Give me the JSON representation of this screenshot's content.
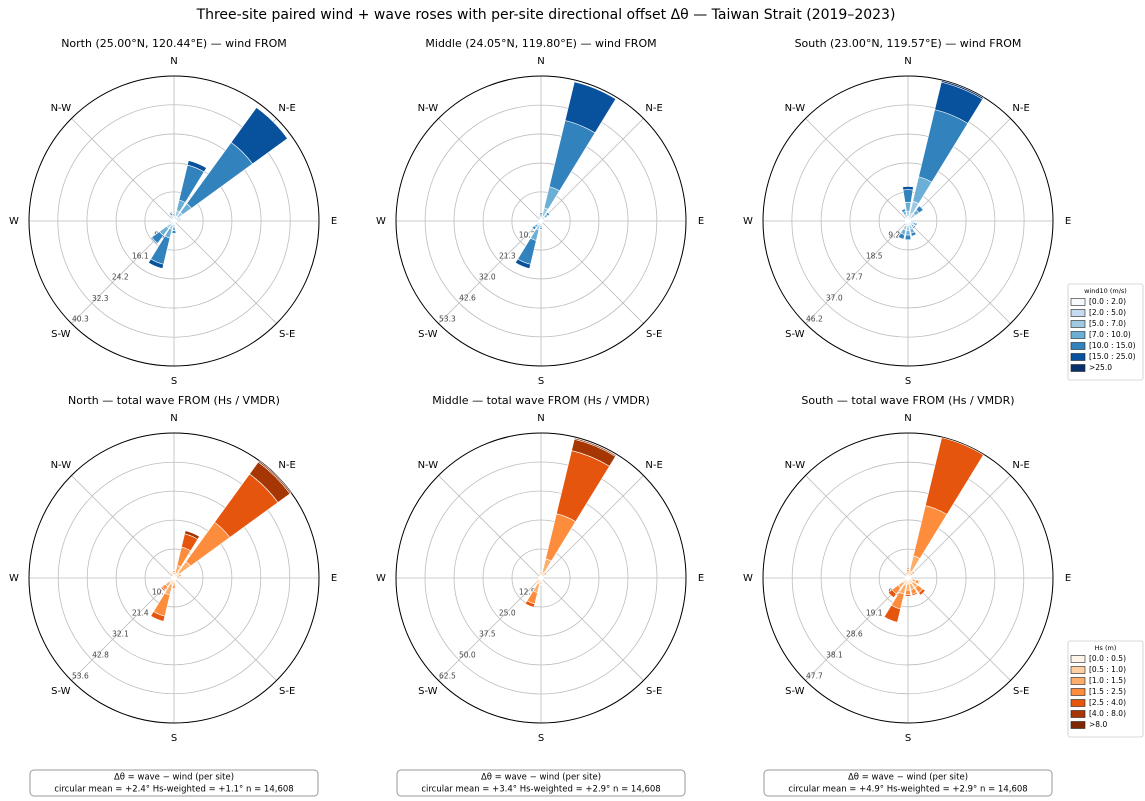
{
  "title": "Three-site paired wind + wave roses with per-site directional offset Δθ — Taiwan Strait (2019–2023)",
  "chart_data": [
    {
      "type": "windrose",
      "title": "North  (25.00°N, 120.44°E) — wind FROM",
      "direction_labels": [
        "N",
        "N-E",
        "E",
        "S-E",
        "S",
        "S-W",
        "W",
        "N-W"
      ],
      "ylim": [
        0,
        40.3
      ],
      "yticks": [
        8.1,
        16.1,
        24.2,
        32.3,
        40.3
      ],
      "series": [
        {
          "name": "[0.0 : 2.0)",
          "color": "#f7fbff",
          "values": [
            0.3,
            0.5,
            0.5,
            0.3,
            0.2,
            0.2,
            0.2,
            0.2,
            0.3,
            0.4,
            0.4,
            0.3,
            0.2,
            0.2,
            0.2,
            0.3
          ]
        },
        {
          "name": "[2.0 : 5.0)",
          "color": "#c6dbef",
          "values": [
            0.5,
            1,
            1,
            0.5,
            0.3,
            0.2,
            0.2,
            0.3,
            0.6,
            0.8,
            0.8,
            0.5,
            0.3,
            0.2,
            0.3,
            0.5
          ]
        },
        {
          "name": "[5.0 : 7.0)",
          "color": "#9ecae1",
          "values": [
            0.5,
            1.5,
            1.5,
            0.6,
            0.2,
            0.1,
            0.1,
            0.2,
            0.8,
            1.2,
            1.3,
            0.4,
            0.2,
            0.1,
            0.2,
            0.5
          ]
        },
        {
          "name": "[7.0 : 10.0)",
          "color": "#6baed6",
          "values": [
            0.4,
            3,
            3,
            0.4,
            0.1,
            0,
            0,
            0.1,
            1,
            2.5,
            2.5,
            0.2,
            0.1,
            0,
            0.1,
            0.4
          ]
        },
        {
          "name": "[10.0 : 15.0)",
          "color": "#3182bd",
          "values": [
            0.2,
            10,
            21,
            0.2,
            0,
            0,
            0,
            0,
            0.8,
            7.5,
            2.7,
            0,
            0,
            0,
            0,
            0.5
          ]
        },
        {
          "name": "[15.0 : 25.0)",
          "color": "#08519c",
          "values": [
            0,
            1.3,
            12,
            0,
            0,
            0,
            0,
            0,
            0.1,
            1.2,
            0.3,
            0,
            0,
            0,
            0,
            0.3
          ]
        },
        {
          "name": ">25.0",
          "color": "#08306b",
          "values": [
            0,
            0.2,
            0,
            0,
            0,
            0,
            0,
            0,
            0,
            0,
            0,
            0,
            0,
            0,
            0,
            0
          ]
        }
      ]
    },
    {
      "type": "windrose",
      "title": "Middle  (24.05°N, 119.80°E) — wind FROM",
      "direction_labels": [
        "N",
        "N-E",
        "E",
        "S-E",
        "S",
        "S-W",
        "W",
        "N-W"
      ],
      "ylim": [
        0,
        53.3
      ],
      "yticks": [
        10.7,
        21.3,
        {
          "value": 32,
          "label": "32.0"
        },
        42.6,
        53.3
      ],
      "series": [
        {
          "name": "[0.0 : 2.0)",
          "color": "#f7fbff",
          "values": [
            0.3,
            0.5,
            0.3,
            0.2,
            0.2,
            0.2,
            0.2,
            0.2,
            0.3,
            0.4,
            0.3,
            0.2,
            0.2,
            0.2,
            0.2,
            0.3
          ]
        },
        {
          "name": "[2.0 : 5.0)",
          "color": "#c6dbef",
          "values": [
            0.5,
            1.5,
            0.6,
            0.3,
            0.3,
            0.3,
            0.3,
            0.3,
            0.6,
            1,
            0.6,
            0.3,
            0.3,
            0.3,
            0.3,
            0.5
          ]
        },
        {
          "name": "[5.0 : 7.0)",
          "color": "#9ecae1",
          "values": [
            0.7,
            3,
            1,
            0.2,
            0.2,
            0.2,
            0.2,
            0.2,
            0.8,
            2,
            0.9,
            0.2,
            0.2,
            0.2,
            0.2,
            0.5
          ]
        },
        {
          "name": "[7.0 : 10.0)",
          "color": "#6baed6",
          "values": [
            0.8,
            8,
            1.2,
            0.1,
            0.1,
            0.1,
            0.1,
            0.1,
            0.8,
            4,
            1.2,
            0.1,
            0.1,
            0.1,
            0.1,
            0.4
          ]
        },
        {
          "name": "[10.0 : 15.0)",
          "color": "#3182bd",
          "values": [
            0.7,
            25,
            0.9,
            0,
            0,
            0,
            0,
            0,
            0.5,
            9,
            1,
            0,
            0,
            0,
            0,
            0.3
          ]
        },
        {
          "name": "[15.0 : 25.0)",
          "color": "#08519c",
          "values": [
            0,
            14.6,
            0,
            0,
            0,
            0,
            0,
            0,
            0,
            1.6,
            0,
            0,
            0,
            0,
            0,
            0
          ]
        },
        {
          "name": ">25.0",
          "color": "#08306b",
          "values": [
            0,
            0,
            0,
            0,
            0,
            0,
            0,
            0,
            0,
            0,
            0,
            0,
            0,
            0,
            0,
            0
          ]
        }
      ]
    },
    {
      "type": "windrose",
      "title": "South  (23.00°N, 119.57°E) — wind FROM",
      "direction_labels": [
        "N",
        "N-E",
        "E",
        "S-E",
        "S",
        "S-W",
        "W",
        "N-W"
      ],
      "ylim": [
        0,
        46.2
      ],
      "yticks": [
        9.2,
        18.5,
        27.7,
        {
          "value": 37,
          "label": "37.0"
        },
        46.2
      ],
      "legend_title": "wind10 (m/s)",
      "series": [
        {
          "name": "[0.0 : 2.0)",
          "color": "#f7fbff",
          "values": [
            0.5,
            0.5,
            0.4,
            0.2,
            0.2,
            0.3,
            0.3,
            0.4,
            0.5,
            0.5,
            0.3,
            0.2,
            0.2,
            0.2,
            0.3,
            0.4
          ]
        },
        {
          "name": "[2.0 : 5.0)",
          "color": "#c6dbef",
          "values": [
            1,
            2,
            1,
            0.3,
            0.3,
            0.7,
            0.7,
            1,
            1,
            1,
            0.4,
            0.3,
            0.3,
            0.3,
            0.4,
            0.8
          ]
        },
        {
          "name": "[5.0 : 7.0)",
          "color": "#9ecae1",
          "values": [
            1.5,
            4,
            1.5,
            0.3,
            0.3,
            0.8,
            0.8,
            1.3,
            1.5,
            1.5,
            0.3,
            0.3,
            0.3,
            0.3,
            0.3,
            1
          ]
        },
        {
          "name": "[7.0 : 10.0)",
          "color": "#6baed6",
          "values": [
            3,
            8,
            1.5,
            0.2,
            0.1,
            0.7,
            0.7,
            1.3,
            1.5,
            1.5,
            0.2,
            0.2,
            0.1,
            0.1,
            0.2,
            1
          ]
        },
        {
          "name": "[10.0 : 15.0)",
          "color": "#3182bd",
          "values": [
            4,
            22,
            1.6,
            0,
            0,
            0.5,
            0.5,
            1,
            1.5,
            1.5,
            0,
            0,
            0,
            0,
            0,
            0.8
          ]
        },
        {
          "name": "[15.0 : 25.0)",
          "color": "#08519c",
          "values": [
            1,
            9,
            0,
            0,
            0,
            0,
            0,
            0,
            0,
            0,
            0,
            0,
            0,
            0,
            0,
            0
          ]
        },
        {
          "name": ">25.0",
          "color": "#08306b",
          "values": [
            0,
            0.5,
            0,
            0,
            0,
            0,
            0,
            0,
            0,
            0,
            0,
            0,
            0,
            0,
            0,
            0
          ]
        }
      ]
    },
    {
      "type": "windrose",
      "title": "North — total wave FROM (Hs / VMDR)",
      "direction_labels": [
        "N",
        "N-E",
        "E",
        "S-E",
        "S",
        "S-W",
        "W",
        "N-W"
      ],
      "ylim": [
        0,
        53.6
      ],
      "yticks": [
        10.7,
        21.4,
        32.1,
        42.8,
        53.6
      ],
      "annotation": [
        "Δθ = wave − wind  (per site)",
        "circular mean = +2.4°    Hs-weighted = +1.1°    n = 14,608"
      ],
      "series": [
        {
          "name": "[0.0 : 0.5)",
          "color": "#fff5eb",
          "values": [
            0.3,
            0.3,
            0.5,
            0.3,
            0.3,
            0.3,
            0.3,
            0.3,
            0.5,
            0.5,
            0.5,
            0.3,
            0.3,
            0.3,
            0.3,
            0.3
          ]
        },
        {
          "name": "[0.5 : 1.0)",
          "color": "#fdd0a2",
          "values": [
            0.8,
            1.5,
            2,
            0.8,
            0.4,
            0.4,
            0.4,
            0.4,
            1,
            2,
            1.5,
            0.4,
            0.4,
            0.4,
            0.4,
            0.6
          ]
        },
        {
          "name": "[1.0 : 1.5)",
          "color": "#fdae6b",
          "values": [
            1,
            3,
            5,
            1,
            0.2,
            0.2,
            0.2,
            0.2,
            1.2,
            4,
            2,
            0.2,
            0.2,
            0.2,
            0.2,
            0.6
          ]
        },
        {
          "name": "[1.5 : 2.5)",
          "color": "#fd8d3c",
          "values": [
            0.7,
            7,
            18,
            0.7,
            0.1,
            0.1,
            0.1,
            0.1,
            1,
            8,
            1.5,
            0.1,
            0.1,
            0.1,
            0.1,
            0.4
          ]
        },
        {
          "name": "[2.5 : 4.0)",
          "color": "#e6550d",
          "values": [
            0.2,
            5,
            22,
            0.2,
            0,
            0,
            0,
            0,
            0.3,
            2,
            0.5,
            0,
            0,
            0,
            0,
            0.1
          ]
        },
        {
          "name": "[4.0 : 8.0)",
          "color": "#a63603",
          "values": [
            0,
            1.2,
            5.5,
            0,
            0,
            0,
            0,
            0,
            0,
            0,
            0,
            0,
            0,
            0,
            0,
            0
          ]
        },
        {
          "name": ">8.0",
          "color": "#7f2704",
          "values": [
            0,
            0,
            0.5,
            0,
            0,
            0,
            0,
            0,
            0,
            0,
            0,
            0,
            0,
            0,
            0,
            0
          ]
        }
      ]
    },
    {
      "type": "windrose",
      "title": "Middle — total wave FROM (Hs / VMDR)",
      "direction_labels": [
        "N",
        "N-E",
        "E",
        "S-E",
        "S",
        "S-W",
        "W",
        "N-W"
      ],
      "ylim": [
        0,
        62.5
      ],
      "yticks": [
        12.5,
        {
          "value": 25,
          "label": "25.0"
        },
        37.5,
        {
          "value": 50,
          "label": "50.0"
        },
        62.5
      ],
      "annotation": [
        "Δθ = wave − wind  (per site)",
        "circular mean = +3.4°    Hs-weighted = +2.9°    n = 14,608"
      ],
      "series": [
        {
          "name": "[0.0 : 0.5)",
          "color": "#fff5eb",
          "values": [
            0.3,
            0.5,
            0.3,
            0.3,
            0.3,
            0.3,
            0.3,
            0.3,
            0.4,
            0.5,
            0.4,
            0.3,
            0.3,
            0.3,
            0.3,
            0.3
          ]
        },
        {
          "name": "[0.5 : 1.0)",
          "color": "#fdd0a2",
          "values": [
            0.8,
            2,
            0.8,
            0.4,
            0.4,
            0.4,
            0.4,
            0.4,
            0.8,
            2,
            0.8,
            0.4,
            0.4,
            0.4,
            0.4,
            0.6
          ]
        },
        {
          "name": "[1.0 : 1.5)",
          "color": "#fdae6b",
          "values": [
            1,
            6,
            1,
            0.2,
            0.2,
            0.2,
            0.2,
            0.2,
            1,
            4,
            1,
            0.2,
            0.2,
            0.2,
            0.2,
            0.6
          ]
        },
        {
          "name": "[1.5 : 2.5)",
          "color": "#fd8d3c",
          "values": [
            0.7,
            20,
            0.9,
            0.1,
            0.1,
            0.1,
            0.1,
            0.1,
            0.6,
            5,
            0.6,
            0.1,
            0.1,
            0.1,
            0.1,
            0.4
          ]
        },
        {
          "name": "[2.5 : 4.0)",
          "color": "#e6550d",
          "values": [
            0.2,
            28,
            0.3,
            0,
            0,
            0,
            0,
            0,
            0.2,
            1.5,
            0.2,
            0,
            0,
            0,
            0,
            0
          ]
        },
        {
          "name": "[4.0 : 8.0)",
          "color": "#a63603",
          "values": [
            0,
            5,
            0,
            0,
            0,
            0,
            0,
            0,
            0,
            0,
            0,
            0,
            0,
            0,
            0,
            0
          ]
        },
        {
          "name": ">8.0",
          "color": "#7f2704",
          "values": [
            0,
            0.5,
            0,
            0,
            0,
            0,
            0,
            0,
            0,
            0,
            0,
            0,
            0,
            0,
            0,
            0
          ]
        }
      ]
    },
    {
      "type": "windrose",
      "title": "South — total wave FROM (Hs / VMDR)",
      "direction_labels": [
        "N",
        "N-E",
        "E",
        "S-E",
        "S",
        "S-W",
        "W",
        "N-W"
      ],
      "ylim": [
        0,
        47.7
      ],
      "yticks": [
        9.5,
        19.1,
        28.6,
        38.1,
        47.7
      ],
      "legend_title": "Hs (m)",
      "annotation": [
        "Δθ = wave − wind  (per site)",
        "circular mean = +4.9°    Hs-weighted = +2.9°    n = 14,608"
      ],
      "series": [
        {
          "name": "[0.0 : 0.5)",
          "color": "#fff5eb",
          "values": [
            0.3,
            0.5,
            0.3,
            0.3,
            0.3,
            0.4,
            0.5,
            0.5,
            0.5,
            0.5,
            0.5,
            0.3,
            0.3,
            0.3,
            0.3,
            0.3
          ]
        },
        {
          "name": "[0.5 : 1.0)",
          "color": "#fdd0a2",
          "values": [
            0.8,
            2,
            0.8,
            0.4,
            0.4,
            1,
            1.5,
            1.5,
            1.5,
            2,
            1.5,
            0.4,
            0.4,
            0.4,
            0.4,
            0.6
          ]
        },
        {
          "name": "[1.0 : 1.5)",
          "color": "#fdae6b",
          "values": [
            1,
            5,
            1,
            0.2,
            0.2,
            1.3,
            2,
            2,
            2,
            3,
            2,
            0.2,
            0.2,
            0.2,
            0.2,
            0.6
          ]
        },
        {
          "name": "[1.5 : 2.5)",
          "color": "#fd8d3c",
          "values": [
            0.7,
            17,
            0.7,
            0.1,
            0.1,
            1,
            2,
            1.5,
            1.5,
            5,
            2.5,
            0.1,
            0.1,
            0.1,
            0.1,
            0.4
          ]
        },
        {
          "name": "[2.5 : 4.0)",
          "color": "#e6550d",
          "values": [
            0.2,
            23,
            0.2,
            0,
            0,
            0.3,
            1,
            0.5,
            0.5,
            4.5,
            1.5,
            0,
            0,
            0,
            0,
            0.1
          ]
        },
        {
          "name": "[4.0 : 8.0)",
          "color": "#a63603",
          "values": [
            0,
            0,
            0,
            0,
            0,
            0,
            0,
            0,
            0,
            0,
            0,
            0,
            0,
            0,
            0,
            0
          ]
        },
        {
          "name": ">8.0",
          "color": "#7f2704",
          "values": [
            0,
            0,
            0,
            0,
            0,
            0,
            0,
            0,
            0,
            0,
            0,
            0,
            0,
            0,
            0,
            0
          ]
        }
      ]
    }
  ]
}
